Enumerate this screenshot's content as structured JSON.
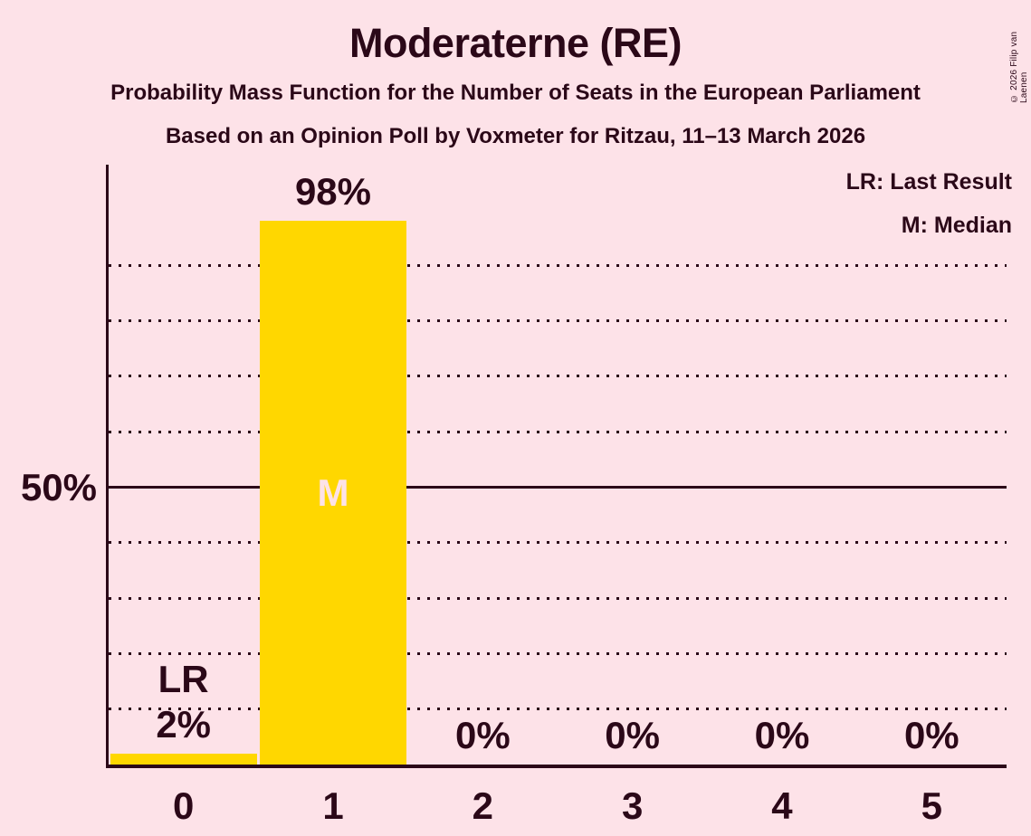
{
  "title": "Moderaterne (RE)",
  "subtitle1": "Probability Mass Function for the Number of Seats in the European Parliament",
  "subtitle2": "Based on an Opinion Poll by Voxmeter for Ritzau, 11–13 March 2026",
  "copyright": "© 2026 Filip van Laenen",
  "legend": {
    "lr": "LR: Last Result",
    "m": "M: Median"
  },
  "y_axis": {
    "label_50": "50%"
  },
  "colors": {
    "background": "#FDE2E8",
    "text": "#2B0818",
    "bar": "#FFD700"
  },
  "chart_data": {
    "type": "bar",
    "title": "Moderaterne (RE)",
    "categories": [
      "0",
      "1",
      "2",
      "3",
      "4",
      "5"
    ],
    "values": [
      2,
      98,
      0,
      0,
      0,
      0
    ],
    "value_labels": [
      "2%",
      "98%",
      "0%",
      "0%",
      "0%",
      "0%"
    ],
    "xlabel": "",
    "ylabel": "",
    "ylim": [
      0,
      100
    ],
    "y_tick_labels": [
      {
        "value": 50,
        "label": "50%"
      }
    ],
    "gridlines": {
      "step_percent": 10,
      "style": "dotted",
      "solid_at_percent": 50
    },
    "legend_position": "top-right",
    "annotations": [
      {
        "type": "last_result",
        "category": "0",
        "label": "LR"
      },
      {
        "type": "median",
        "category": "1",
        "label": "M"
      }
    ]
  }
}
